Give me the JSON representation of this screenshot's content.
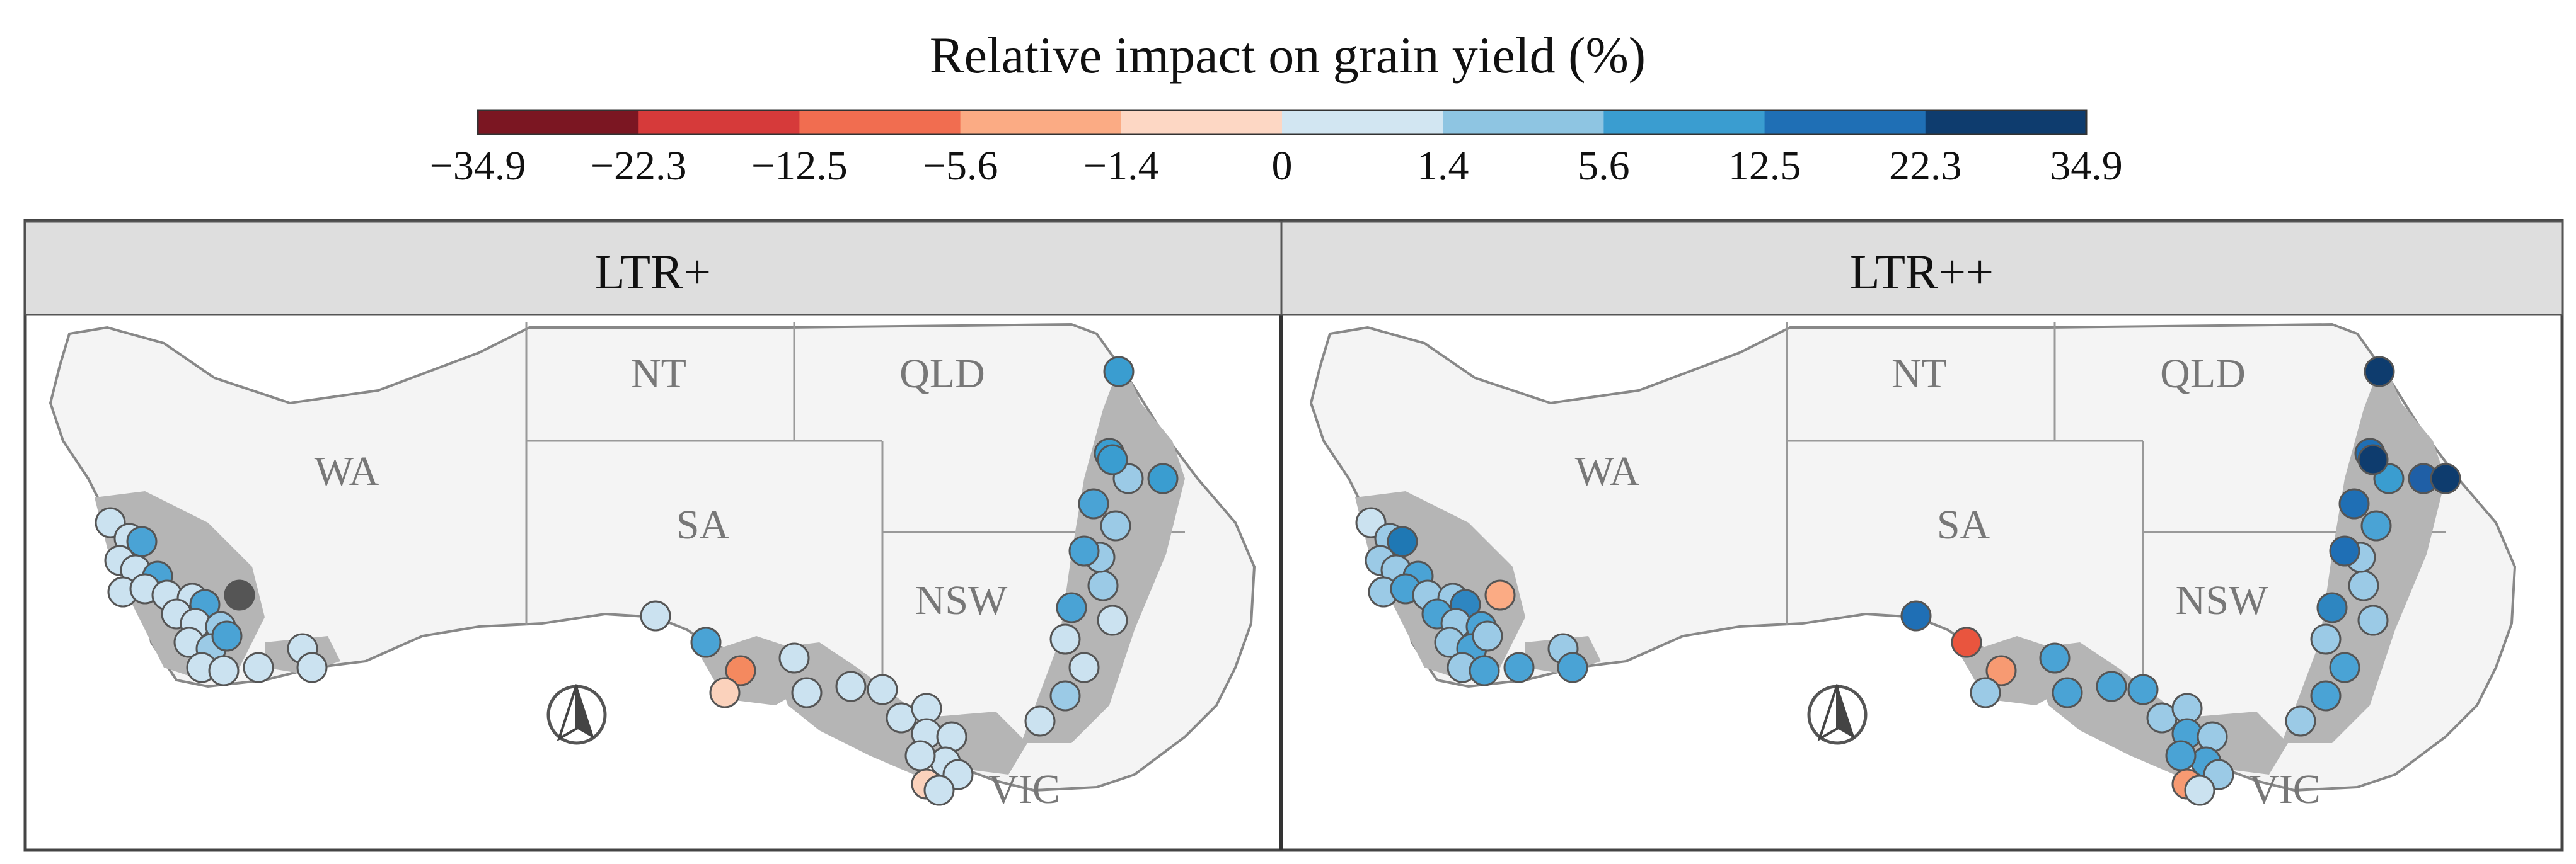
{
  "legend": {
    "title": "Relative impact on grain yield (%)",
    "ticks": [
      "−34.9",
      "−22.3",
      "−12.5",
      "−5.6",
      "−1.4",
      "0",
      "1.4",
      "5.6",
      "12.5",
      "22.3",
      "34.9"
    ],
    "colors": [
      "#7b1622",
      "#d63a3a",
      "#f16d50",
      "#fbab84",
      "#fdd7c4",
      "#d2e6f2",
      "#8ec5e2",
      "#3a9dd0",
      "#1f6fb5",
      "#0e3c6e"
    ]
  },
  "panels": [
    {
      "title": "LTR+",
      "regions": {
        "wa": "WA",
        "nt": "NT",
        "qld": "QLD",
        "sa": "SA",
        "nsw": "NSW",
        "vic": "VIC"
      },
      "sites": [
        "#cbe2f0",
        "#cbe2f0",
        "#4aa3d5",
        "#cbe2f0",
        "#cbe2f0",
        "#4aa3d5",
        "#cbe2f0",
        "#cbe2f0",
        "#cbe2f0",
        "#cbe2f0",
        "#9bcae6",
        "#4aa3d5",
        "#cbe2f0",
        "#cbe2f0",
        "#9bcae6",
        "#555555",
        "#cbe2f0",
        "#9bcae6",
        "#4aa3d5",
        "#cbe2f0",
        "#cbe2f0",
        "#cbe2f0",
        "#cbe2f0",
        "#cbe2f0",
        "#cbe2f0",
        "#4aa3d5",
        "#f4895f",
        "#fbd2bc",
        "#cbe2f0",
        "#cbe2f0",
        "#cbe2f0",
        "#cbe2f0",
        "#cbe2f0",
        "#cbe2f0",
        "#cbe2f0",
        "#cbe2f0",
        "#cbe2f0",
        "#cbe2f0",
        "#cbe2f0",
        "#fbd2bc",
        "#cbe2f0",
        "#cbe2f0",
        "#9bcae6",
        "#cbe2f0",
        "#cbe2f0",
        "#4aa3d5",
        "#cbe2f0",
        "#9bcae6",
        "#9bcae6",
        "#4aa3d5",
        "#9bcae6",
        "#4aa3d5",
        "#9bcae6",
        "#3a9dd0",
        "#3a9dd0",
        "#3a9dd0",
        "#3a9dd0"
      ]
    },
    {
      "title": "LTR++",
      "regions": {
        "wa": "WA",
        "nt": "NT",
        "qld": "QLD",
        "sa": "SA",
        "nsw": "NSW",
        "vic": "VIC"
      },
      "sites": [
        "#cbe2f0",
        "#9bcae6",
        "#1f78b4",
        "#9bcae6",
        "#9bcae6",
        "#4aa3d5",
        "#9bcae6",
        "#4aa3d5",
        "#9bcae6",
        "#9bcae6",
        "#4aa3d5",
        "#2e86c1",
        "#4aa3d5",
        "#9bcae6",
        "#4aa3d5",
        "#fbab84",
        "#9bcae6",
        "#4aa3d5",
        "#9bcae6",
        "#9bcae6",
        "#4aa3d5",
        "#4aa3d5",
        "#9bcae6",
        "#4aa3d5",
        "#1f6fb5",
        "#e9553e",
        "#f79a72",
        "#9bcae6",
        "#4aa3d5",
        "#4aa3d5",
        "#4aa3d5",
        "#4aa3d5",
        "#9bcae6",
        "#9bcae6",
        "#4aa3d5",
        "#9bcae6",
        "#4aa3d5",
        "#4aa3d5",
        "#9bcae6",
        "#f79a72",
        "#cbe2f0",
        "#9bcae6",
        "#4aa3d5",
        "#4aa3d5",
        "#9bcae6",
        "#2e86c1",
        "#9bcae6",
        "#9bcae6",
        "#9bcae6",
        "#1f6fb5",
        "#4aa3d5",
        "#1f6fb5",
        "#3a9dd0",
        "#1f6fb5",
        "#0e3c6e",
        "#0e3c6e",
        "#1f5fa6",
        "#0e3c6e"
      ]
    }
  ]
}
